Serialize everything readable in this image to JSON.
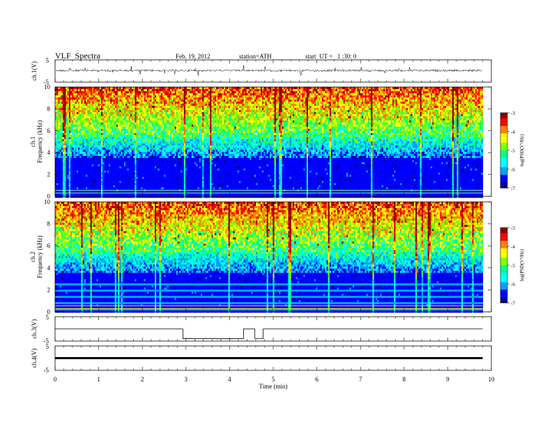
{
  "header": {
    "title": "VLF  Spectra",
    "date": "Feb. 19, 2012",
    "station": "station=ATH",
    "start_ut": "start  UT =   1 :30: 0"
  },
  "colorbar_label": "log(PSD(V²/Hz)",
  "colors": {
    "frame": "#000000",
    "background": "#ffffff",
    "colormap": [
      "#00008b",
      "#0000ff",
      "#00a0ff",
      "#00ffff",
      "#00ff80",
      "#80ff00",
      "#ffff00",
      "#ff8000",
      "#ff0000",
      "#8b0000"
    ]
  },
  "chart_data": [
    {
      "type": "line",
      "panel": "ch1-voltage",
      "ylabel": "ch.1(V)",
      "yticks": [
        "5",
        "-5"
      ],
      "ylim": [
        -5,
        5
      ],
      "baseline_value": 0.2,
      "description_color": "#000000"
    },
    {
      "type": "heatmap",
      "panel": "ch1-spectrogram",
      "ylabel": "ch.1\nFrequency  (kHz)",
      "ylabel_lines": [
        "ch.1",
        "Frequency  (kHz)"
      ],
      "yticks": [
        "0",
        "2",
        "4",
        "6",
        "8",
        "10"
      ],
      "ylim": [
        0,
        10
      ],
      "colorbar": {
        "ticks": [
          "-3",
          "-4",
          "-5",
          "-6",
          "-7"
        ],
        "range": [
          -7,
          -3
        ],
        "label": "log(PSD(V²/Hz)"
      }
    },
    {
      "type": "heatmap",
      "panel": "ch2-spectrogram",
      "ylabel_lines": [
        "ch.2",
        "Frequency  (kHz)"
      ],
      "yticks": [
        "0",
        "2",
        "4",
        "6",
        "8",
        "10"
      ],
      "ylim": [
        0,
        10
      ],
      "colorbar": {
        "ticks": [
          "-3",
          "-4",
          "-5",
          "-6",
          "-7"
        ],
        "range": [
          -7,
          -3
        ],
        "label": "log(PSD(V²/Hz)"
      }
    },
    {
      "type": "line",
      "panel": "ch3-voltage",
      "ylabel": "ch.3(V)",
      "yticks": [
        "5",
        "-5"
      ],
      "ylim": [
        -5,
        5
      ],
      "x": [
        0,
        2.93,
        2.93,
        4.32,
        4.32,
        4.58,
        4.58,
        4.77,
        4.77,
        9.8
      ],
      "y": [
        0,
        0,
        -4,
        -4,
        0,
        0,
        -4,
        -4,
        0,
        0
      ]
    },
    {
      "type": "line",
      "panel": "ch4-voltage",
      "ylabel": "ch.4(V)",
      "yticks": [
        "5",
        "-5"
      ],
      "ylim": [
        -5,
        5
      ],
      "x": [
        0,
        9.8
      ],
      "y": [
        0,
        0
      ]
    },
    {
      "type": "axis",
      "panel": "time-axis",
      "xlabel": "Time  (min)",
      "xticks": [
        "0",
        "1",
        "2",
        "3",
        "4",
        "5",
        "6",
        "7",
        "8",
        "9",
        "10"
      ],
      "xlim": [
        0,
        10
      ]
    }
  ]
}
